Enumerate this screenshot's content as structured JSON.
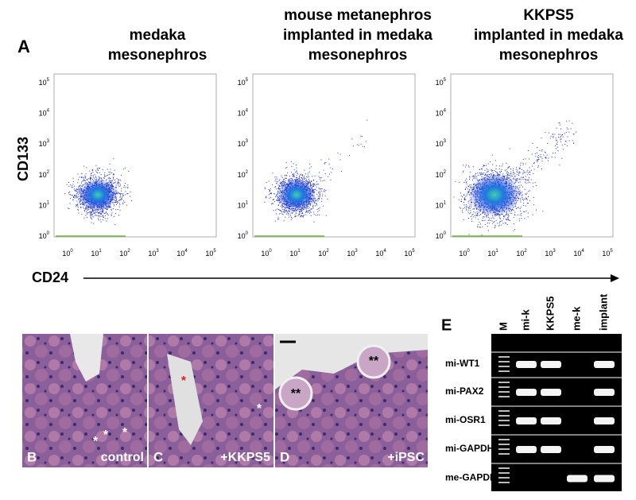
{
  "panel_a": {
    "label": "A",
    "plots": [
      {
        "title": [
          "medaka",
          "mesonephros"
        ]
      },
      {
        "title": [
          "mouse metanephros",
          "implanted in medaka",
          "mesonephros"
        ]
      },
      {
        "title": [
          "KKPS5",
          "implanted in medaka",
          "mesonephros"
        ]
      }
    ],
    "y_axis_label": "CD133",
    "x_axis_label": "CD24",
    "tick_base": "10",
    "tick_exponents": [
      "0",
      "1",
      "2",
      "3",
      "4",
      "5"
    ]
  },
  "histology": {
    "panels": [
      {
        "letter": "B",
        "label": "control",
        "marks": [
          "*",
          "*",
          "*"
        ]
      },
      {
        "letter": "C",
        "label": "+KKPS5",
        "marks": [
          "*",
          "*"
        ]
      },
      {
        "letter": "D",
        "label": "+iPSC",
        "marks": [
          "**",
          "**"
        ]
      }
    ]
  },
  "gel": {
    "label": "E",
    "lanes": [
      "M",
      "mi-k",
      "KKPS5",
      "me-k",
      "implant"
    ],
    "rows": [
      "mi-WT1",
      "mi-PAX2",
      "mi-OSR1",
      "mi-GAPDH",
      "me-GAPDH"
    ]
  }
}
